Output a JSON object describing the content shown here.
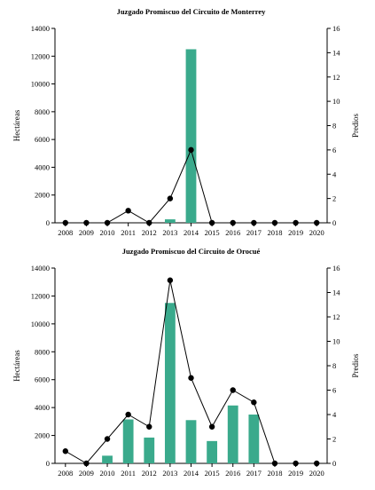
{
  "colors": {
    "bar": "#3aaa8c",
    "line": "#000000",
    "axis": "#000000"
  },
  "chart_data": [
    {
      "type": "bar+line",
      "title": "Juzgado Promiscuo del Circuito de Monterrey",
      "categories": [
        "2008",
        "2009",
        "2010",
        "2011",
        "2012",
        "2013",
        "2014",
        "2015",
        "2016",
        "2017",
        "2018",
        "2019",
        "2020"
      ],
      "ylabel": "Hectáreas",
      "y2label": "Predios",
      "ylim": [
        0,
        14000
      ],
      "y2lim": [
        0,
        16
      ],
      "yticks": [
        "0",
        "2000",
        "4000",
        "6000",
        "8000",
        "10000",
        "12000",
        "14000"
      ],
      "y2ticks": [
        "0",
        "2",
        "4",
        "6",
        "8",
        "10",
        "12",
        "14",
        "16"
      ],
      "series": [
        {
          "kind": "bar",
          "axis": "left",
          "values": [
            0,
            0,
            0,
            0,
            0,
            250,
            12500,
            0,
            0,
            0,
            0,
            0,
            0
          ]
        },
        {
          "kind": "line",
          "axis": "right",
          "values": [
            0,
            0,
            0,
            1,
            0,
            2,
            6,
            0,
            0,
            0,
            0,
            0,
            0
          ]
        }
      ]
    },
    {
      "type": "bar+line",
      "title": "Juzgado Promiscuo del Circuito de Orocué",
      "categories": [
        "2008",
        "2009",
        "2010",
        "2011",
        "2012",
        "2013",
        "2014",
        "2015",
        "2016",
        "2017",
        "2018",
        "2019",
        "2020"
      ],
      "ylabel": "Hectáreas",
      "y2label": "Predios",
      "ylim": [
        0,
        14000
      ],
      "y2lim": [
        0,
        16
      ],
      "yticks": [
        "0",
        "2000",
        "4000",
        "6000",
        "8000",
        "10000",
        "12000",
        "14000"
      ],
      "y2ticks": [
        "0",
        "2",
        "4",
        "6",
        "8",
        "10",
        "12",
        "14",
        "16"
      ],
      "series": [
        {
          "kind": "bar",
          "axis": "left",
          "values": [
            0,
            0,
            550,
            3150,
            1850,
            11500,
            3100,
            1600,
            4150,
            3500,
            0,
            0,
            0
          ]
        },
        {
          "kind": "line",
          "axis": "right",
          "values": [
            1,
            0,
            2,
            4,
            3,
            15,
            7,
            3,
            6,
            5,
            0,
            0,
            0
          ]
        }
      ]
    }
  ]
}
